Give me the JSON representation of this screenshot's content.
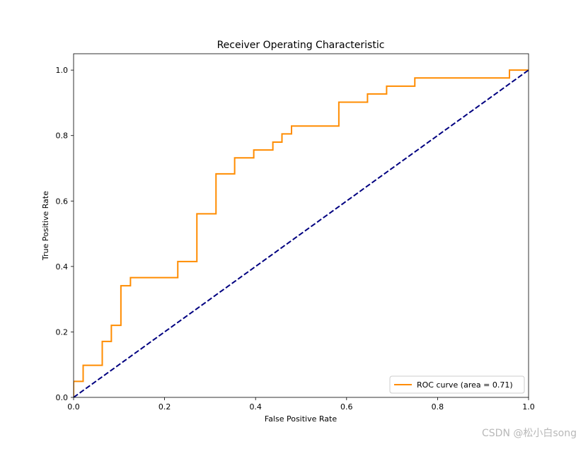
{
  "chart_data": {
    "type": "line",
    "title": "Receiver Operating Characteristic",
    "xlabel": "False Positive Rate",
    "ylabel": "True Positive Rate",
    "xlim": [
      0.0,
      1.0
    ],
    "ylim": [
      0.0,
      1.05
    ],
    "x_ticks": [
      0.0,
      0.2,
      0.4,
      0.6,
      0.8,
      1.0
    ],
    "x_tick_labels": [
      "0.0",
      "0.2",
      "0.4",
      "0.6",
      "0.8",
      "1.0"
    ],
    "y_ticks": [
      0.0,
      0.2,
      0.4,
      0.6,
      0.8,
      1.0
    ],
    "y_tick_labels": [
      "0.0",
      "0.2",
      "0.4",
      "0.6",
      "0.8",
      "1.0"
    ],
    "grid": false,
    "legend_position": "lower-right",
    "series": [
      {
        "name": "ROC curve (area = 0.71)",
        "color": "#ff8c00",
        "style": "solid",
        "x": [
          0.0,
          0.0,
          0.021,
          0.021,
          0.063,
          0.063,
          0.083,
          0.083,
          0.104,
          0.104,
          0.125,
          0.125,
          0.229,
          0.229,
          0.271,
          0.271,
          0.313,
          0.313,
          0.354,
          0.354,
          0.396,
          0.396,
          0.438,
          0.438,
          0.458,
          0.458,
          0.479,
          0.479,
          0.583,
          0.583,
          0.646,
          0.646,
          0.688,
          0.688,
          0.75,
          0.75,
          0.958,
          0.958,
          1.0
        ],
        "y": [
          0.0,
          0.049,
          0.049,
          0.098,
          0.098,
          0.171,
          0.171,
          0.22,
          0.22,
          0.341,
          0.341,
          0.366,
          0.366,
          0.415,
          0.415,
          0.561,
          0.561,
          0.683,
          0.683,
          0.732,
          0.732,
          0.756,
          0.756,
          0.78,
          0.78,
          0.805,
          0.805,
          0.829,
          0.829,
          0.902,
          0.902,
          0.927,
          0.927,
          0.951,
          0.951,
          0.976,
          0.976,
          1.0,
          1.0
        ]
      },
      {
        "name": "",
        "color": "#000080",
        "style": "dashed",
        "x": [
          0.0,
          1.0
        ],
        "y": [
          0.0,
          1.0
        ]
      }
    ]
  },
  "watermark": "CSDN @松小白song"
}
